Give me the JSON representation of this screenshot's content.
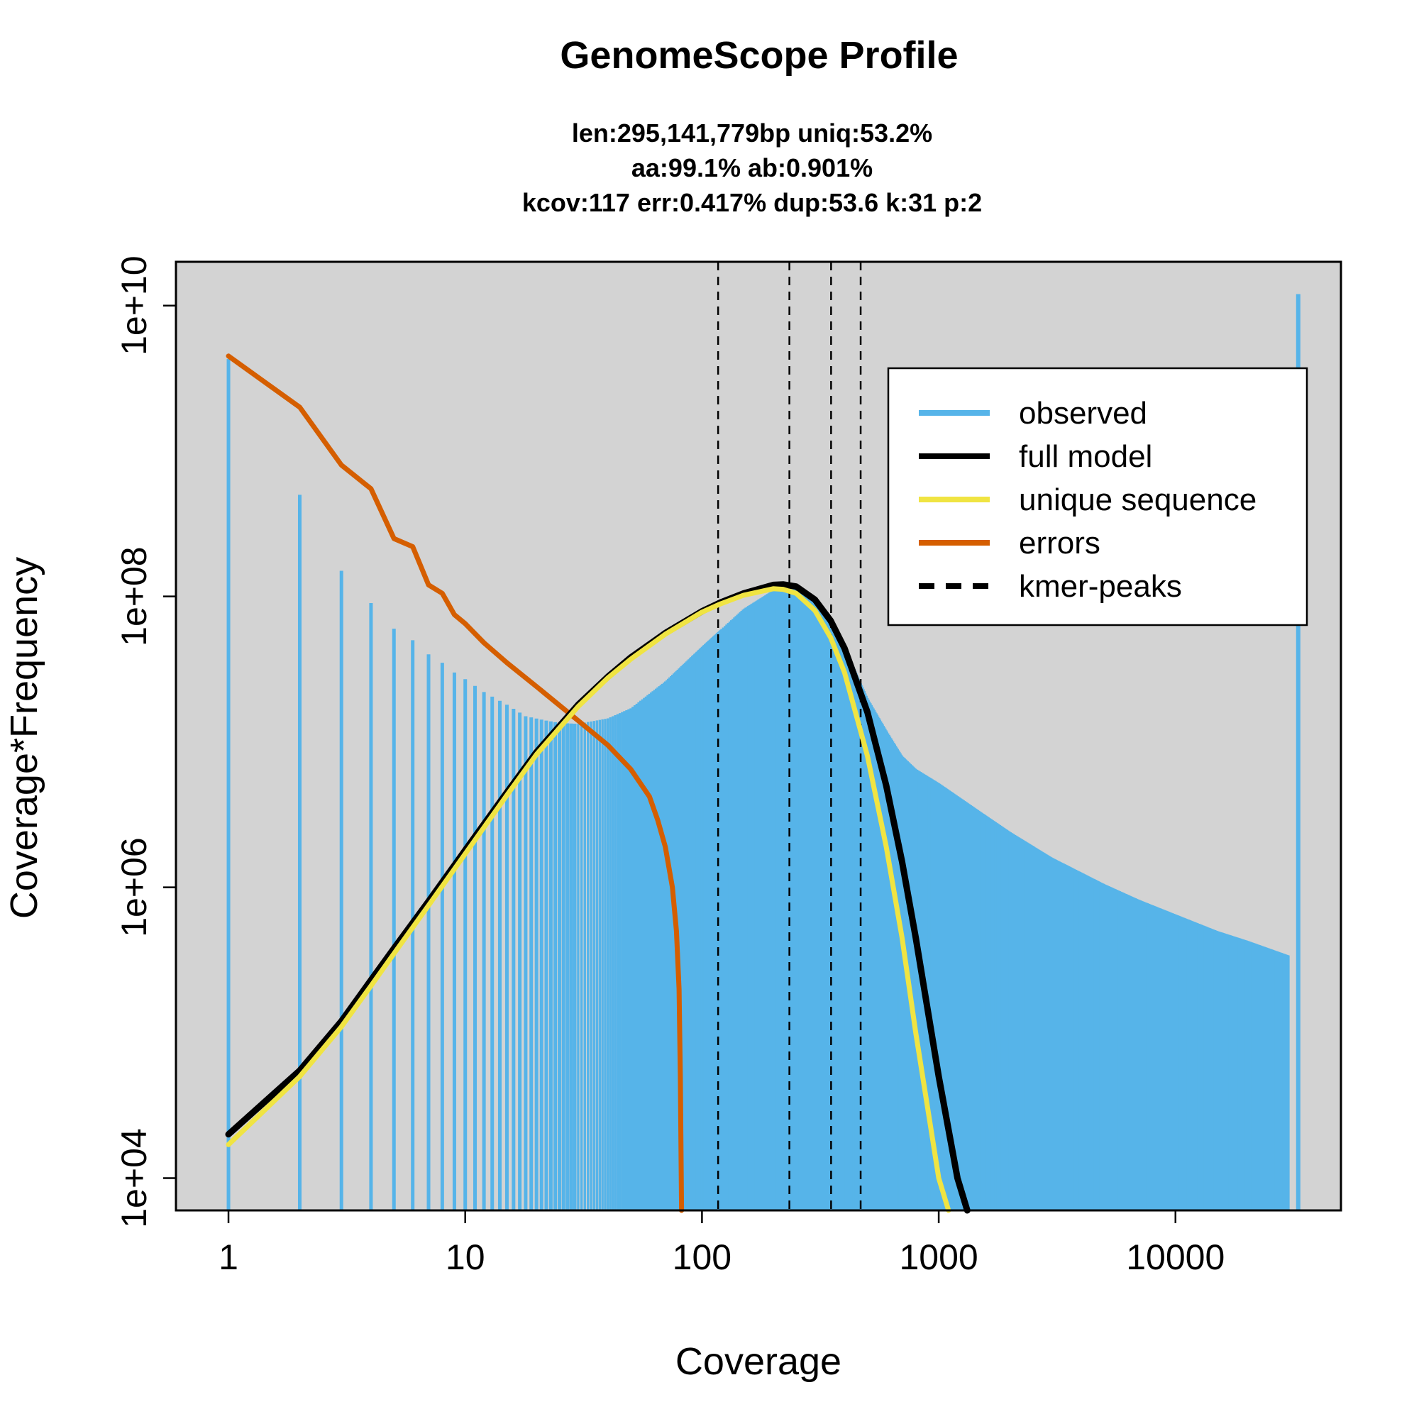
{
  "chart_data": {
    "type": "line",
    "title": "GenomeScope Profile",
    "subtitle_lines": [
      "len:295,141,779bp uniq:53.2%",
      "aa:99.1% ab:0.901%",
      "kcov:117 err:0.417%  dup:53.6  k:31 p:2"
    ],
    "xlabel": "Coverage",
    "ylabel": "Coverage*Frequency",
    "x_scale": "log",
    "y_scale": "log",
    "xlim": [
      0.6,
      50000
    ],
    "ylim": [
      6000,
      20000000000
    ],
    "x_ticks": [
      1,
      10,
      100,
      1000,
      10000
    ],
    "x_tick_labels": [
      "1",
      "10",
      "100",
      "1000",
      "10000"
    ],
    "y_ticks": [
      10000,
      1000000,
      100000000,
      10000000000
    ],
    "y_tick_labels": [
      "1e+04",
      "1e+06",
      "1e+08",
      "1e+10"
    ],
    "background": "#d3d3d3",
    "grid": false,
    "legend_position": "top-right",
    "legend": [
      {
        "label": "observed",
        "color": "#56b4e9",
        "style": "solid"
      },
      {
        "label": "full model",
        "color": "#000000",
        "style": "solid"
      },
      {
        "label": "unique sequence",
        "color": "#f0e442",
        "style": "solid"
      },
      {
        "label": "errors",
        "color": "#d55e00",
        "style": "solid"
      },
      {
        "label": "kmer-peaks",
        "color": "#000000",
        "style": "dashed"
      }
    ],
    "kmer_peaks": [
      117,
      234,
      351,
      468
    ],
    "observed": {
      "x": [
        1,
        2,
        3,
        4,
        5,
        6,
        7,
        8,
        9,
        10,
        12,
        15,
        18,
        22,
        25,
        30,
        40,
        50,
        70,
        100,
        150,
        200,
        250,
        300,
        350,
        400,
        500,
        600,
        700,
        800,
        1000,
        1500,
        2000,
        3000,
        5000,
        7000,
        10000,
        15000,
        20000,
        30000,
        33000
      ],
      "y": [
        4300000000,
        500000000,
        150000000,
        90000000,
        60000000,
        50000000,
        40000000,
        35000000,
        30000000,
        27000000,
        22000000,
        18000000,
        15000000,
        14000000,
        13500000,
        13300000,
        14500000,
        17000000,
        26000000,
        45000000,
        82000000,
        110000000,
        112000000,
        95000000,
        70000000,
        45000000,
        20000000,
        12000000,
        8000000,
        6500000,
        5200000,
        3300000,
        2400000,
        1600000,
        1050000,
        820000,
        650000,
        500000,
        430000,
        340000,
        12000000000
      ]
    },
    "series": [
      {
        "name": "full model",
        "color": "#000000",
        "x": [
          1,
          2,
          3,
          4,
          5,
          7,
          10,
          15,
          20,
          30,
          40,
          50,
          70,
          100,
          120,
          150,
          200,
          220,
          250,
          300,
          350,
          400,
          500,
          600,
          700,
          800,
          1000,
          1200,
          1320
        ],
        "y": [
          20000,
          55000,
          120000,
          230000,
          380000,
          800000,
          1800000,
          4500000,
          8500000,
          18000000,
          28000000,
          38000000,
          56000000,
          79000000,
          91000000,
          105000000,
          120000000,
          121000000,
          117000000,
          95000000,
          68000000,
          44000000,
          16000000,
          5000000,
          1500000,
          450000,
          50000,
          10000,
          5000
        ]
      },
      {
        "name": "unique sequence",
        "color": "#f0e442",
        "x": [
          1,
          2,
          3,
          4,
          5,
          7,
          10,
          15,
          20,
          30,
          40,
          50,
          70,
          100,
          120,
          150,
          200,
          220,
          250,
          300,
          350,
          400,
          500,
          600,
          700,
          800,
          1000,
          1100
        ],
        "y": [
          17000,
          50000,
          110000,
          210000,
          350000,
          750000,
          1700000,
          4300000,
          8200000,
          17500000,
          27500000,
          37000000,
          55000000,
          78000000,
          89000000,
          102000000,
          113000000,
          112000000,
          105000000,
          80000000,
          52000000,
          30000000,
          8000000,
          1900000,
          450000,
          100000,
          10000,
          5000
        ]
      },
      {
        "name": "errors",
        "color": "#d55e00",
        "x": [
          1,
          2,
          3,
          4,
          5,
          6,
          7,
          8,
          9,
          10,
          12,
          15,
          20,
          30,
          40,
          50,
          60,
          65,
          70,
          75,
          78,
          80,
          81,
          82
        ],
        "y": [
          4500000000,
          2000000000,
          800000000,
          550000000,
          250000000,
          220000000,
          120000000,
          105000000,
          75000000,
          65000000,
          48000000,
          35000000,
          24000000,
          14000000,
          9500000,
          6500000,
          4200000,
          2900000,
          1900000,
          1000000,
          500000,
          200000,
          50000,
          6000
        ]
      }
    ]
  }
}
